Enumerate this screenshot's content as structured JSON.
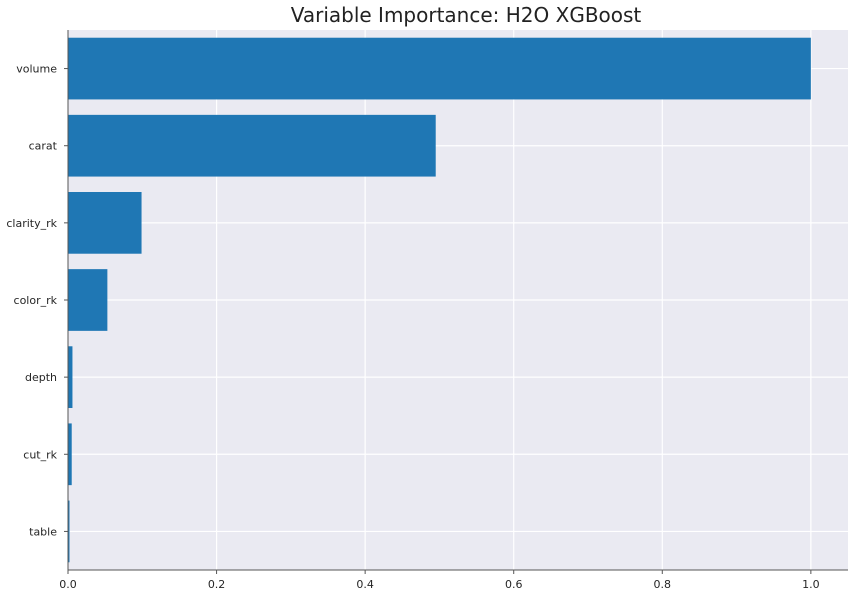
{
  "chart_data": {
    "type": "bar",
    "orientation": "horizontal",
    "title": "Variable Importance: H2O XGBoost",
    "xlabel": "",
    "ylabel": "",
    "categories": [
      "volume",
      "carat",
      "clarity_rk",
      "color_rk",
      "depth",
      "cut_rk",
      "table"
    ],
    "values": [
      1.0,
      0.495,
      0.099,
      0.053,
      0.006,
      0.005,
      0.002
    ],
    "xlim": [
      0,
      1.05
    ],
    "xticks": [
      0.0,
      0.2,
      0.4,
      0.6,
      0.8,
      1.0
    ],
    "xtick_labels": [
      "0.0",
      "0.2",
      "0.4",
      "0.6",
      "0.8",
      "1.0"
    ],
    "grid": true,
    "legend": "none",
    "colors": {
      "bar": "#1f77b4",
      "background": "#eaeaf2",
      "grid": "#ffffff",
      "axis": "#555555"
    }
  }
}
